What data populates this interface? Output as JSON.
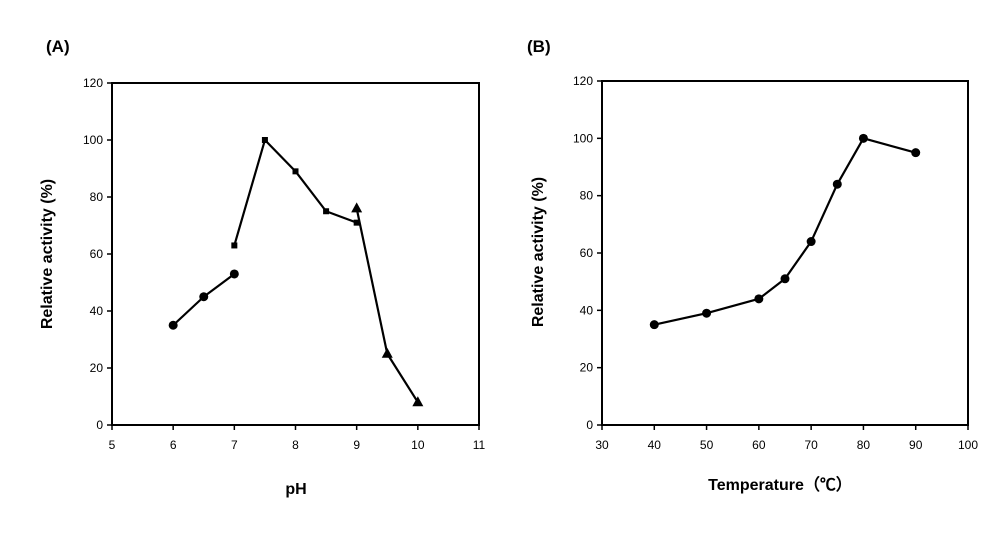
{
  "chart_data": [
    {
      "type": "line",
      "panel_label": "(A)",
      "xlabel": "pH",
      "ylabel": "Relative activity (%)",
      "xlim": [
        5,
        11
      ],
      "ylim": [
        0,
        120
      ],
      "xticks": [
        "5",
        "6",
        "7",
        "8",
        "9",
        "10",
        "11"
      ],
      "yticks": [
        "0",
        "20",
        "40",
        "60",
        "80",
        "100",
        "120"
      ],
      "grid": false,
      "series": [
        {
          "marker": "circle",
          "x": [
            6,
            6.5,
            7
          ],
          "y": [
            35,
            45,
            53
          ]
        },
        {
          "marker": "square",
          "x": [
            7,
            7.5,
            8,
            8.5,
            9
          ],
          "y": [
            63,
            100,
            89,
            75,
            71
          ]
        },
        {
          "marker": "triangle",
          "x": [
            9,
            9.5,
            10
          ],
          "y": [
            76,
            25,
            8
          ]
        }
      ]
    },
    {
      "type": "line",
      "panel_label": "(B)",
      "xlabel": "Temperature（℃）",
      "ylabel": "Relative activity (%)",
      "xlim": [
        30,
        100
      ],
      "ylim": [
        0,
        120
      ],
      "xticks": [
        "30",
        "40",
        "50",
        "60",
        "70",
        "80",
        "90",
        "100"
      ],
      "yticks": [
        "0",
        "20",
        "40",
        "60",
        "80",
        "100",
        "120"
      ],
      "grid": false,
      "series": [
        {
          "marker": "circle",
          "x": [
            40,
            50,
            60,
            65,
            70,
            75,
            80,
            90
          ],
          "y": [
            35,
            39,
            44,
            51,
            64,
            84,
            100,
            95
          ]
        }
      ]
    }
  ]
}
